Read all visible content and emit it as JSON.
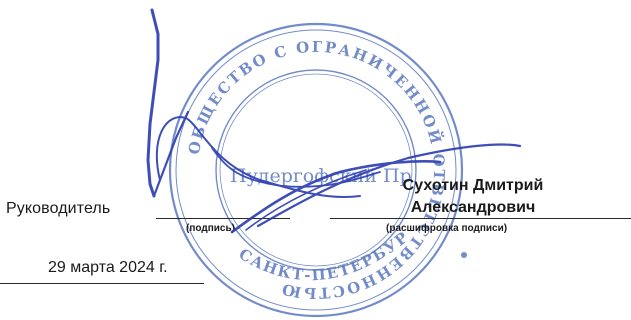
{
  "document": {
    "role_label": "Руководитель",
    "signature_caption": "(подпись)",
    "name_line1": "Сухотин Дмитрий",
    "name_line2": "Александрович",
    "name_caption": "(расшифровка подписи)",
    "date": "29 марта 2024 г."
  },
  "stamp": {
    "ring_text": "ОБЩЕСТВО С ОГРАНИЧЕННОЙ ОТВЕТСТВЕННОСТЬЮ",
    "center_text": "Пудергофский Пр",
    "bottom_text": "САНКТ-ПЕТЕРБУРГ",
    "color": "#5b79c0"
  },
  "colors": {
    "signature_ink": "#2f3fb0",
    "text": "#1a1a1a",
    "lines": "#2a2a2a"
  }
}
